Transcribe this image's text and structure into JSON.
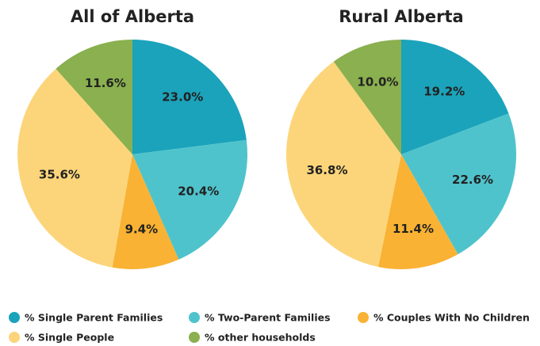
{
  "chart_data": [
    {
      "type": "pie",
      "title": "All of Alberta",
      "categories": [
        "% Single Parent Families",
        "% Two-Parent Families",
        "% Couples With No Children",
        "% Single People",
        "% other households"
      ],
      "values": [
        23.0,
        20.4,
        9.4,
        35.6,
        11.6
      ],
      "value_labels": [
        "23.0%",
        "20.4%",
        "9.4%",
        "35.6%",
        "11.6%"
      ],
      "colors": [
        "#1ba3bb",
        "#4fc3cc",
        "#f9b233",
        "#fcd57a",
        "#8ab04f"
      ]
    },
    {
      "type": "pie",
      "title": "Rural Alberta",
      "categories": [
        "% Single Parent Families",
        "% Two-Parent Families",
        "% Couples With No Children",
        "% Single People",
        "% other households"
      ],
      "values": [
        19.2,
        22.6,
        11.4,
        36.8,
        10.0
      ],
      "value_labels": [
        "19.2%",
        "22.6%",
        "11.4%",
        "36.8%",
        "10.0%"
      ],
      "colors": [
        "#1ba3bb",
        "#4fc3cc",
        "#f9b233",
        "#fcd57a",
        "#8ab04f"
      ]
    }
  ]
}
